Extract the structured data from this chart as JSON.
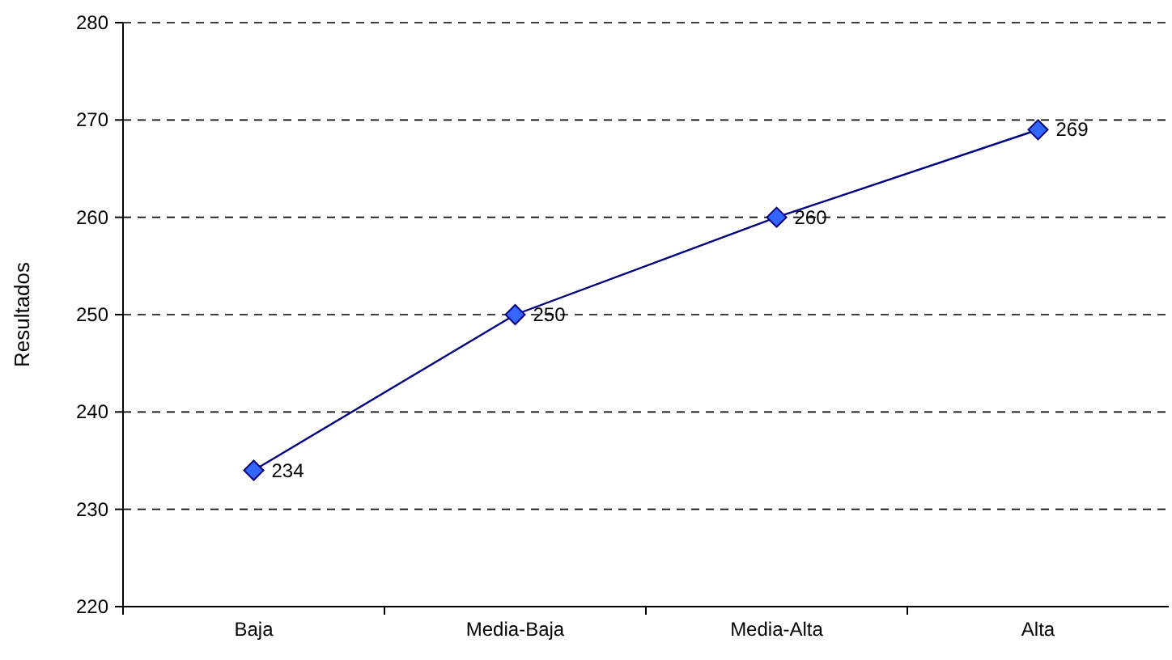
{
  "chart_data": {
    "type": "line",
    "ylabel": "Resultados",
    "categories": [
      "Baja",
      "Media-Baja",
      "Media-Alta",
      "Alta"
    ],
    "series": [
      {
        "color": "#000080",
        "values": [
          234,
          250,
          260,
          269
        ]
      }
    ],
    "ylim": [
      220,
      280
    ],
    "yticks": [
      220,
      230,
      240,
      250,
      260,
      270,
      280
    ],
    "grid": "y",
    "marker": "diamond",
    "line_style": "solid",
    "data_labels": true
  }
}
